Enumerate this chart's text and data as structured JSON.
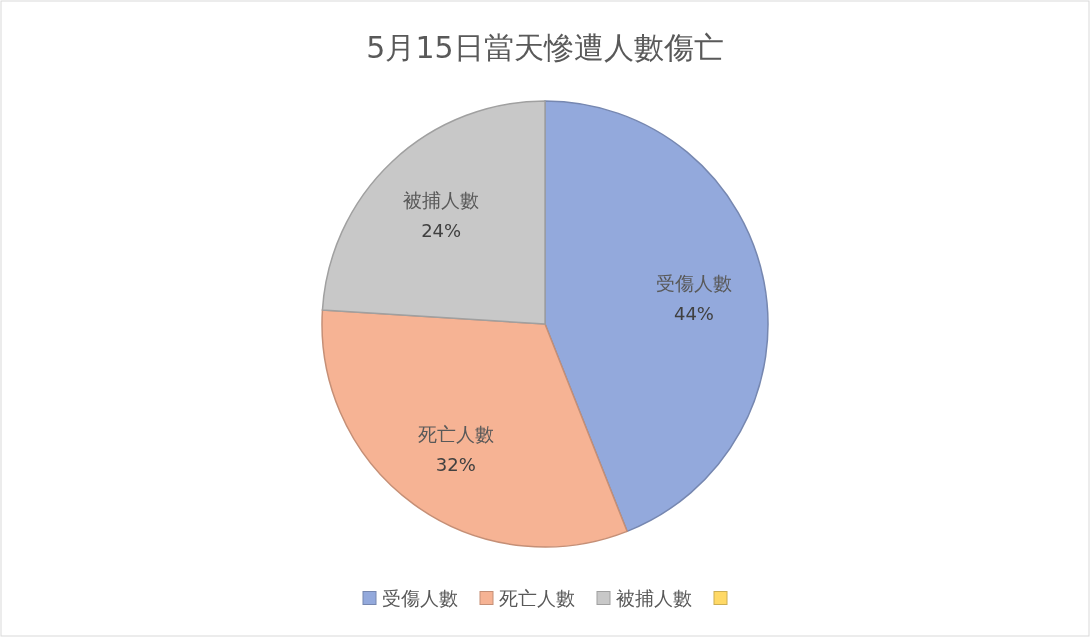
{
  "chart_data": {
    "type": "pie",
    "title": "5月15日當天慘遭人數傷亡",
    "categories": [
      "受傷人數",
      "死亡人數",
      "被捕人數",
      null
    ],
    "values": [
      44,
      32,
      24,
      0
    ],
    "colors": [
      "#93a9dc",
      "#f6b394",
      "#c8c8c8",
      "#ffd966"
    ],
    "value_labels": [
      "44%",
      "32%",
      "24%",
      null
    ],
    "legend": "bottom"
  }
}
